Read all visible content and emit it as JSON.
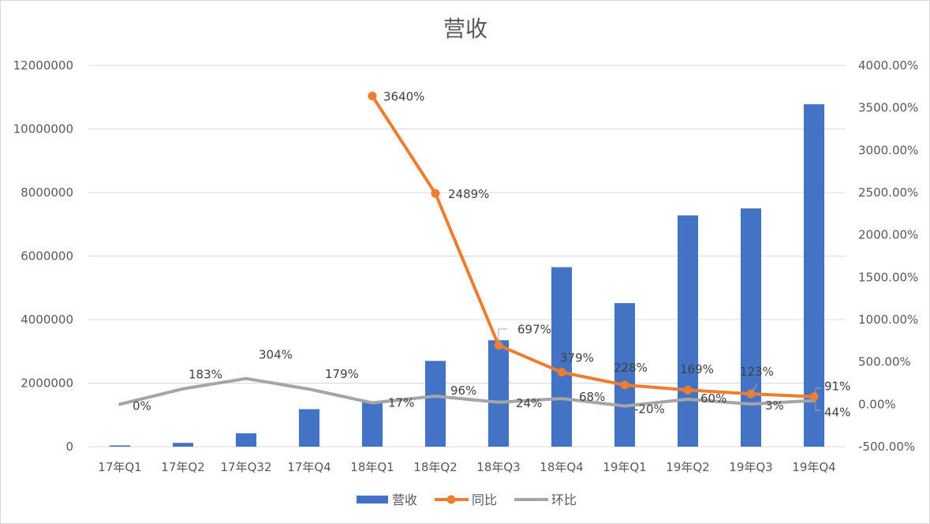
{
  "chart_data": {
    "type": "bar",
    "title": "营收",
    "categories": [
      "17年Q1",
      "17年Q2",
      "17年Q32",
      "17年Q4",
      "18年Q1",
      "18年Q2",
      "18年Q3",
      "18年Q4",
      "19年Q1",
      "19年Q2",
      "19年Q3",
      "19年Q4"
    ],
    "y_left": {
      "min": 0,
      "max": 12000000,
      "ticks": [
        "0",
        "2000000",
        "4000000",
        "6000000",
        "8000000",
        "10000000",
        "12000000"
      ]
    },
    "y_right": {
      "min": -500,
      "max": 4000,
      "ticks": [
        "-500.00%",
        "0.00%",
        "500.00%",
        "1000.00%",
        "1500.00%",
        "2000.00%",
        "2500.00%",
        "3000.00%",
        "3500.00%",
        "4000.00%"
      ]
    },
    "grid": true,
    "legend_position": "bottom",
    "series": [
      {
        "name": "营收",
        "type": "bar",
        "axis": "left",
        "color": "#4472C4",
        "values": [
          40000,
          120000,
          420000,
          1180000,
          1420000,
          2700000,
          3350000,
          5650000,
          4520000,
          7280000,
          7500000,
          10780000
        ]
      },
      {
        "name": "同比",
        "type": "line",
        "axis": "right",
        "color": "#ED7D31",
        "values": [
          null,
          null,
          null,
          null,
          3640,
          2489,
          697,
          379,
          228,
          169,
          123,
          91
        ],
        "labels": [
          "",
          "",
          "",
          "",
          "3640%",
          "2489%",
          "697%",
          "379%",
          "228%",
          "169%",
          "123%",
          "91%"
        ]
      },
      {
        "name": "环比",
        "type": "line",
        "axis": "right",
        "color": "#A5A5A5",
        "values": [
          0,
          183,
          304,
          179,
          17,
          96,
          24,
          68,
          -20,
          60,
          3,
          44
        ],
        "labels": [
          "0%",
          "183%",
          "304%",
          "179%",
          "17%",
          "96%",
          "24%",
          "68%",
          "-20%",
          "60%",
          "3%",
          "44%"
        ]
      }
    ]
  }
}
